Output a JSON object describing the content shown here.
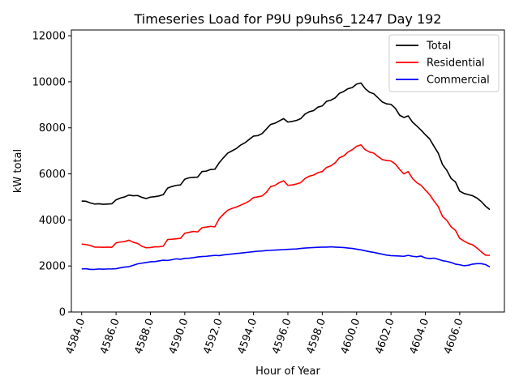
{
  "chart_data": {
    "type": "line",
    "title": "Timeseries Load for P9U p9uhs6_1247  Day 192",
    "xlabel": "Hour of Year",
    "ylabel": "kW total",
    "xlim": [
      4583.4,
      4608.6
    ],
    "ylim": [
      0,
      12250
    ],
    "xticks": [
      4584,
      4586,
      4588,
      4590,
      4592,
      4594,
      4596,
      4598,
      4600,
      4602,
      4604,
      4606
    ],
    "xtick_labels": [
      "4584.0",
      "4586.0",
      "4588.0",
      "4590.0",
      "4592.0",
      "4594.0",
      "4596.0",
      "4598.0",
      "4600.0",
      "4602.0",
      "4604.0",
      "4606.0"
    ],
    "yticks": [
      0,
      2000,
      4000,
      6000,
      8000,
      10000,
      12000
    ],
    "ytick_labels": [
      "0",
      "2000",
      "4000",
      "6000",
      "8000",
      "10000",
      "12000"
    ],
    "legend_position": "top-right",
    "colors": {
      "Total": "#000000",
      "Residential": "#ff0000",
      "Commercial": "#0000ff"
    },
    "x": [
      4584.0,
      4584.25,
      4584.5,
      4584.75,
      4585.0,
      4585.25,
      4585.5,
      4585.75,
      4586.0,
      4586.25,
      4586.5,
      4586.75,
      4587.0,
      4587.25,
      4587.5,
      4587.75,
      4588.0,
      4588.25,
      4588.5,
      4588.75,
      4589.0,
      4589.25,
      4589.5,
      4589.75,
      4590.0,
      4590.25,
      4590.5,
      4590.75,
      4591.0,
      4591.25,
      4591.5,
      4591.75,
      4592.0,
      4592.25,
      4592.5,
      4592.75,
      4593.0,
      4593.25,
      4593.5,
      4593.75,
      4594.0,
      4594.25,
      4594.5,
      4594.75,
      4595.0,
      4595.25,
      4595.5,
      4595.75,
      4596.0,
      4596.25,
      4596.5,
      4596.75,
      4597.0,
      4597.25,
      4597.5,
      4597.75,
      4598.0,
      4598.25,
      4598.5,
      4598.75,
      4599.0,
      4599.25,
      4599.5,
      4599.75,
      4600.0,
      4600.25,
      4600.5,
      4600.75,
      4601.0,
      4601.25,
      4601.5,
      4601.75,
      4602.0,
      4602.25,
      4602.5,
      4602.75,
      4603.0,
      4603.25,
      4603.5,
      4603.75,
      4604.0,
      4604.25,
      4604.5,
      4604.75,
      4605.0,
      4605.25,
      4605.5,
      4605.75,
      4606.0,
      4606.25,
      4606.5,
      4606.75,
      4607.0,
      4607.25,
      4607.5,
      4607.75
    ],
    "series": [
      {
        "name": "Total",
        "values": [
          4820,
          4810,
          4740,
          4690,
          4700,
          4680,
          4690,
          4700,
          4870,
          4950,
          5000,
          5080,
          5050,
          5060,
          4980,
          4930,
          4990,
          5010,
          5040,
          5100,
          5380,
          5450,
          5500,
          5520,
          5770,
          5830,
          5850,
          5860,
          6100,
          6120,
          6190,
          6200,
          6480,
          6700,
          6900,
          7000,
          7100,
          7250,
          7350,
          7500,
          7640,
          7660,
          7750,
          7950,
          8150,
          8200,
          8300,
          8400,
          8250,
          8280,
          8320,
          8400,
          8600,
          8700,
          8750,
          8900,
          8950,
          9150,
          9200,
          9300,
          9500,
          9580,
          9700,
          9750,
          9900,
          9950,
          9700,
          9550,
          9480,
          9300,
          9120,
          9040,
          9020,
          8850,
          8550,
          8450,
          8520,
          8250,
          8080,
          7900,
          7700,
          7520,
          7200,
          6900,
          6400,
          6150,
          5800,
          5650,
          5250,
          5150,
          5100,
          5050,
          4950,
          4800,
          4600,
          4450
        ]
      },
      {
        "name": "Residential",
        "values": [
          2950,
          2930,
          2890,
          2820,
          2820,
          2810,
          2820,
          2810,
          3000,
          3040,
          3060,
          3120,
          3030,
          2980,
          2860,
          2790,
          2800,
          2830,
          2830,
          2860,
          3150,
          3160,
          3180,
          3200,
          3420,
          3460,
          3500,
          3480,
          3660,
          3690,
          3720,
          3700,
          4050,
          4250,
          4420,
          4500,
          4560,
          4640,
          4720,
          4820,
          4970,
          5000,
          5040,
          5200,
          5450,
          5500,
          5620,
          5700,
          5500,
          5520,
          5560,
          5620,
          5800,
          5900,
          5950,
          6050,
          6100,
          6280,
          6350,
          6480,
          6700,
          6780,
          6950,
          7050,
          7200,
          7260,
          7050,
          6950,
          6900,
          6750,
          6620,
          6580,
          6560,
          6430,
          6200,
          6000,
          6100,
          5800,
          5620,
          5500,
          5300,
          5100,
          4820,
          4580,
          4150,
          3980,
          3700,
          3550,
          3200,
          3080,
          2980,
          2920,
          2780,
          2620,
          2470,
          2460
        ]
      },
      {
        "name": "Commercial",
        "values": [
          1870,
          1880,
          1850,
          1850,
          1870,
          1860,
          1870,
          1870,
          1880,
          1920,
          1950,
          1970,
          2030,
          2090,
          2120,
          2150,
          2180,
          2190,
          2220,
          2250,
          2240,
          2270,
          2310,
          2290,
          2330,
          2340,
          2360,
          2390,
          2410,
          2420,
          2440,
          2460,
          2450,
          2480,
          2500,
          2520,
          2540,
          2560,
          2580,
          2600,
          2620,
          2640,
          2650,
          2670,
          2680,
          2690,
          2700,
          2710,
          2720,
          2730,
          2740,
          2760,
          2780,
          2790,
          2800,
          2810,
          2820,
          2820,
          2830,
          2820,
          2810,
          2800,
          2780,
          2760,
          2730,
          2700,
          2660,
          2620,
          2590,
          2550,
          2510,
          2470,
          2450,
          2440,
          2430,
          2420,
          2460,
          2420,
          2400,
          2430,
          2350,
          2320,
          2340,
          2290,
          2230,
          2200,
          2150,
          2080,
          2050,
          2010,
          2030,
          2080,
          2100,
          2100,
          2060,
          1960
        ]
      }
    ]
  }
}
